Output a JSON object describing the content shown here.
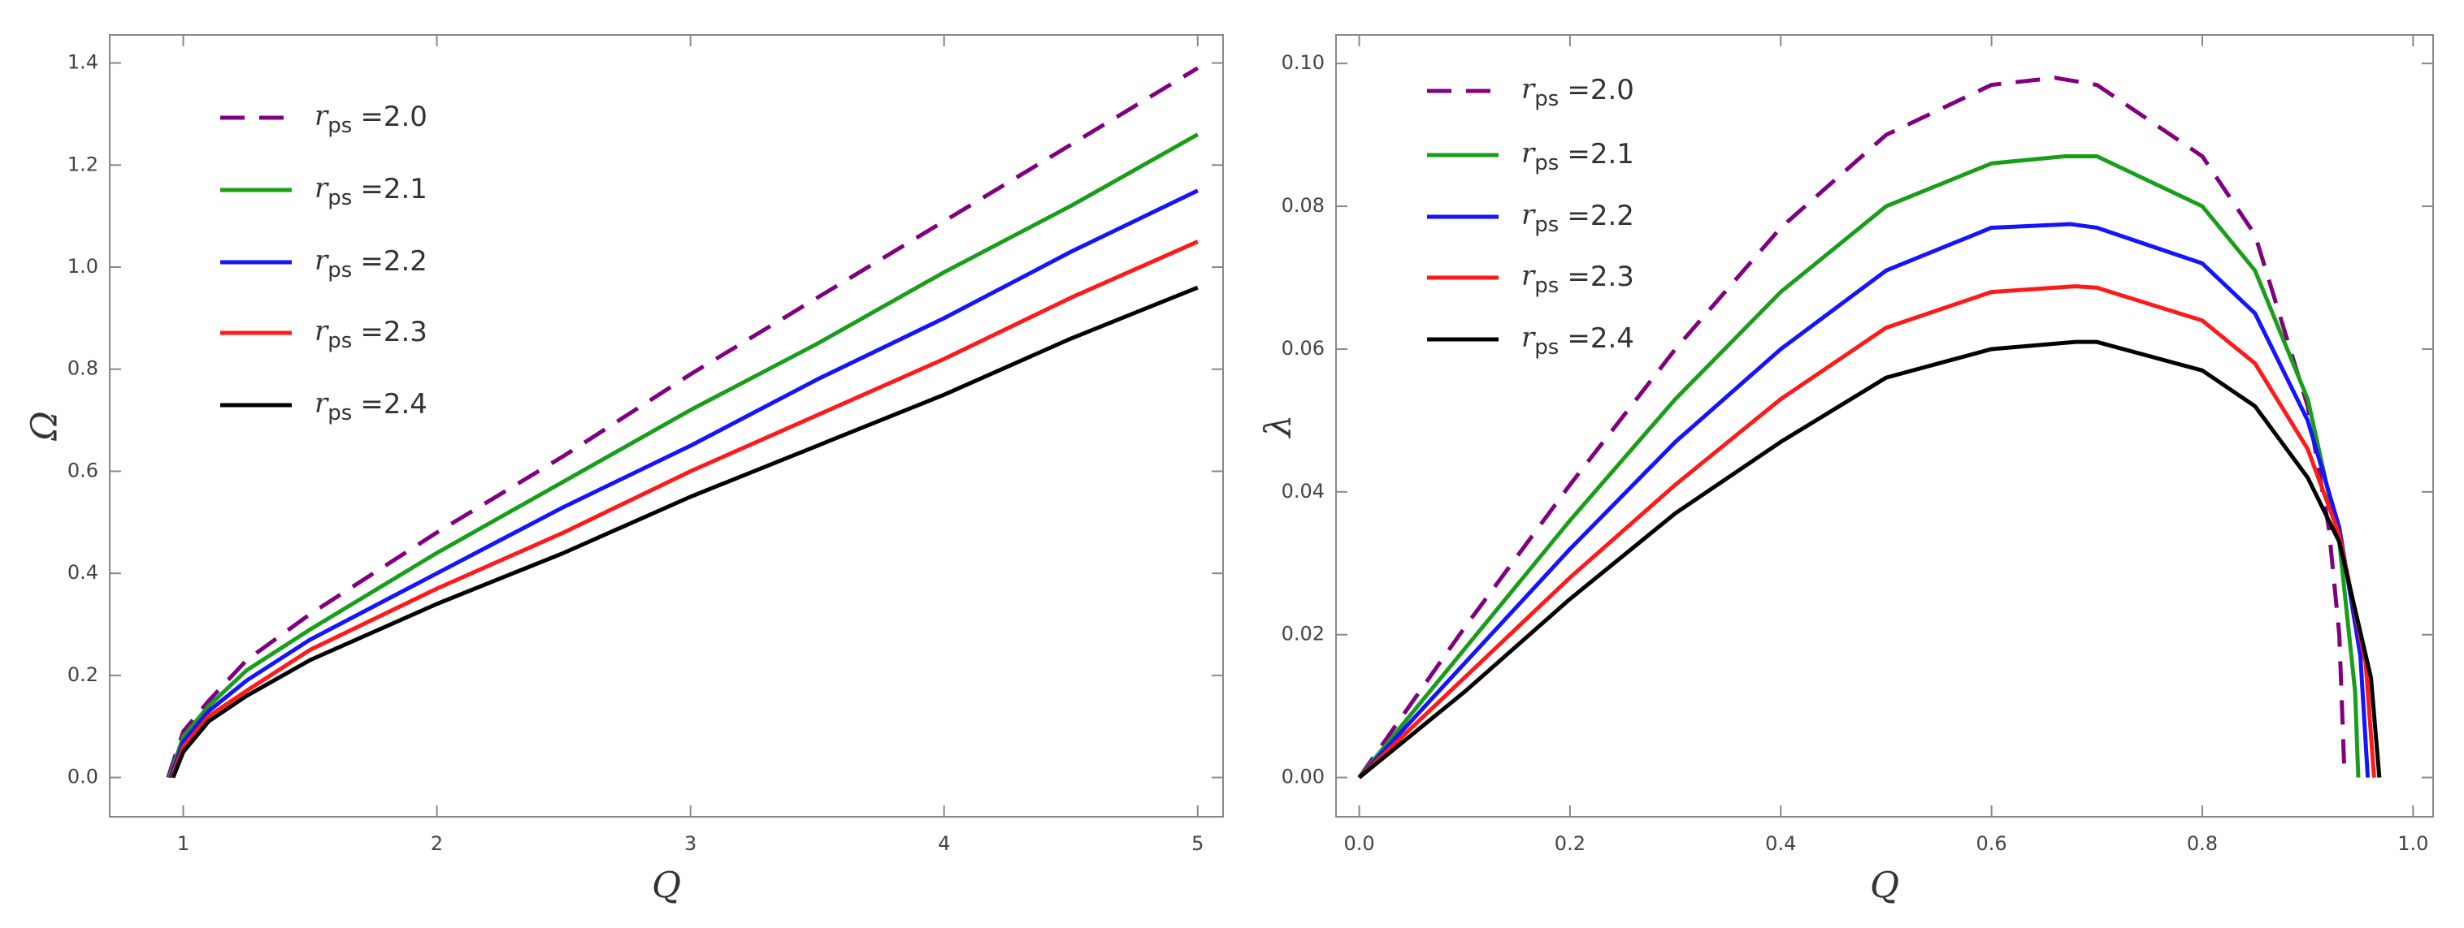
{
  "chart_data": [
    {
      "type": "line",
      "xlabel": "Q",
      "ylabel": "Ω",
      "legend_symbol": "r",
      "legend_subscript": "ps",
      "xlim": [
        0.71,
        5.1
      ],
      "ylim": [
        -0.077,
        1.455
      ],
      "xticks": [
        1,
        2,
        3,
        4,
        5
      ],
      "yticks": [
        {
          "value": 0,
          "label": "0.0"
        },
        0.2,
        0.4,
        0.6,
        0.8,
        {
          "value": 1,
          "label": "1.0"
        },
        1.2,
        1.4
      ],
      "series": [
        {
          "name": "=2.0",
          "color": "#800080",
          "dashed": true,
          "x": [
            0.94,
            1.0,
            1.1,
            1.25,
            1.5,
            2,
            2.5,
            3,
            3.5,
            4,
            4.5,
            5
          ],
          "values": [
            0,
            0.09,
            0.15,
            0.23,
            0.32,
            0.48,
            0.63,
            0.79,
            0.94,
            1.09,
            1.24,
            1.39
          ]
        },
        {
          "name": "=2.1",
          "color": "#1a9e1a",
          "dashed": false,
          "x": [
            0.945,
            1.0,
            1.1,
            1.25,
            1.5,
            2,
            2.5,
            3,
            3.5,
            4,
            4.5,
            5
          ],
          "values": [
            0,
            0.08,
            0.14,
            0.21,
            0.29,
            0.44,
            0.58,
            0.72,
            0.85,
            0.99,
            1.12,
            1.26
          ]
        },
        {
          "name": "=2.2",
          "color": "#1414ff",
          "dashed": false,
          "x": [
            0.95,
            1.0,
            1.1,
            1.25,
            1.5,
            2,
            2.5,
            3,
            3.5,
            4,
            4.5,
            5
          ],
          "values": [
            0,
            0.07,
            0.13,
            0.19,
            0.27,
            0.4,
            0.53,
            0.65,
            0.78,
            0.9,
            1.03,
            1.15
          ]
        },
        {
          "name": "=2.3",
          "color": "#ff1a1a",
          "dashed": false,
          "x": [
            0.955,
            1.0,
            1.1,
            1.25,
            1.5,
            2,
            2.5,
            3,
            3.5,
            4,
            4.5,
            5
          ],
          "values": [
            0,
            0.06,
            0.12,
            0.17,
            0.25,
            0.37,
            0.48,
            0.6,
            0.71,
            0.82,
            0.94,
            1.05
          ]
        },
        {
          "name": "=2.4",
          "color": "#000000",
          "dashed": false,
          "x": [
            0.96,
            1.0,
            1.1,
            1.25,
            1.5,
            2,
            2.5,
            3,
            3.5,
            4,
            4.5,
            5
          ],
          "values": [
            0,
            0.05,
            0.11,
            0.16,
            0.23,
            0.34,
            0.44,
            0.55,
            0.65,
            0.75,
            0.86,
            0.96
          ]
        }
      ]
    },
    {
      "type": "line",
      "xlabel": "Q",
      "ylabel": "λ",
      "legend_symbol": "r",
      "legend_subscript": "ps",
      "xlim": [
        -0.022,
        1.019
      ],
      "ylim": [
        -0.0055,
        0.104
      ],
      "xticks": [
        {
          "value": 0,
          "label": "0.0"
        },
        0.2,
        0.4,
        0.6,
        0.8,
        {
          "value": 1,
          "label": "1.0"
        }
      ],
      "yticks": [
        {
          "value": 0,
          "label": "0.00"
        },
        {
          "value": 0.02,
          "label": "0.02"
        },
        {
          "value": 0.04,
          "label": "0.04"
        },
        {
          "value": 0.06,
          "label": "0.06"
        },
        {
          "value": 0.08,
          "label": "0.08"
        },
        {
          "value": 0.1,
          "label": "0.10"
        }
      ],
      "series": [
        {
          "name": "=2.0",
          "color": "#800080",
          "dashed": true,
          "x": [
            0,
            0.1,
            0.2,
            0.3,
            0.4,
            0.5,
            0.6,
            0.66,
            0.7,
            0.8,
            0.85,
            0.9,
            0.92,
            0.93,
            0.935
          ],
          "values": [
            0,
            0.021,
            0.041,
            0.06,
            0.077,
            0.09,
            0.097,
            0.098,
            0.097,
            0.087,
            0.076,
            0.052,
            0.035,
            0.02,
            0
          ]
        },
        {
          "name": "=2.1",
          "color": "#1a9e1a",
          "dashed": false,
          "x": [
            0,
            0.1,
            0.2,
            0.3,
            0.4,
            0.5,
            0.6,
            0.67,
            0.7,
            0.8,
            0.85,
            0.9,
            0.93,
            0.945,
            0.948
          ],
          "values": [
            0,
            0.018,
            0.036,
            0.053,
            0.068,
            0.08,
            0.086,
            0.087,
            0.087,
            0.08,
            0.071,
            0.053,
            0.033,
            0.012,
            0
          ]
        },
        {
          "name": "=2.2",
          "color": "#1414ff",
          "dashed": false,
          "x": [
            0,
            0.1,
            0.2,
            0.3,
            0.4,
            0.5,
            0.6,
            0.675,
            0.7,
            0.8,
            0.85,
            0.9,
            0.93,
            0.95,
            0.957
          ],
          "values": [
            0,
            0.016,
            0.032,
            0.047,
            0.06,
            0.071,
            0.077,
            0.0775,
            0.077,
            0.072,
            0.065,
            0.05,
            0.035,
            0.017,
            0
          ]
        },
        {
          "name": "=2.3",
          "color": "#ff1a1a",
          "dashed": false,
          "x": [
            0,
            0.1,
            0.2,
            0.3,
            0.4,
            0.5,
            0.6,
            0.68,
            0.7,
            0.8,
            0.85,
            0.9,
            0.93,
            0.955,
            0.963
          ],
          "values": [
            0,
            0.014,
            0.028,
            0.041,
            0.053,
            0.063,
            0.068,
            0.0688,
            0.0686,
            0.064,
            0.058,
            0.046,
            0.034,
            0.016,
            0
          ]
        },
        {
          "name": "=2.4",
          "color": "#000000",
          "dashed": false,
          "x": [
            0,
            0.1,
            0.2,
            0.3,
            0.4,
            0.5,
            0.6,
            0.68,
            0.7,
            0.8,
            0.85,
            0.9,
            0.93,
            0.96,
            0.968
          ],
          "values": [
            0,
            0.012,
            0.025,
            0.037,
            0.047,
            0.056,
            0.06,
            0.061,
            0.061,
            0.057,
            0.052,
            0.042,
            0.033,
            0.014,
            0
          ]
        }
      ]
    }
  ]
}
